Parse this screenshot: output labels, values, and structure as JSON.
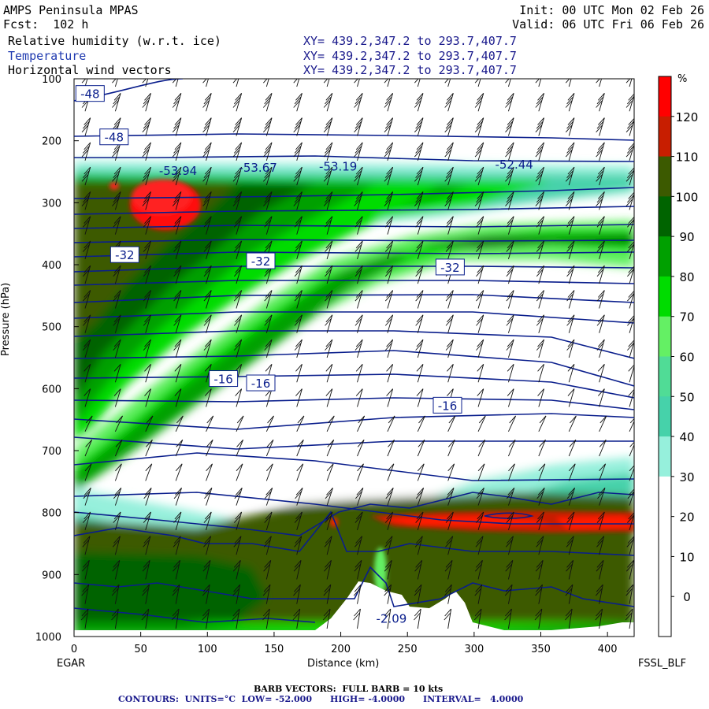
{
  "header": {
    "model": "AMPS Peninsula MPAS",
    "fcst": "Fcst:  102 h",
    "init": "Init: 00 UTC Mon 02 Feb 26",
    "valid": "Valid: 06 UTC Fri 06 Feb 26",
    "fields": [
      {
        "label": "Relative humidity (w.r.t. ice)",
        "xy": "XY= 439.2,347.2 to 293.7,407.7"
      },
      {
        "label": "Temperature",
        "xy": "XY= 439.2,347.2 to 293.7,407.7"
      },
      {
        "label": "Horizontal wind vectors",
        "xy": "XY= 439.2,347.2 to 293.7,407.7"
      }
    ]
  },
  "footer": {
    "left_station": "EGAR",
    "right_station": "FSSL_BLF",
    "barb_note": "BARB VECTORS:  FULL BARB = 10 kts",
    "contour_note": "CONTOURS:  UNITS=°C  LOW= -52.000      HIGH= -4.0000      INTERVAL=   4.0000"
  },
  "chart_data": {
    "type": "heatmap",
    "subtype": "vertical cross-section",
    "xlabel": "Distance (km)",
    "ylabel": "Pressure (hPa)",
    "xlim": [
      0,
      420
    ],
    "ylim": [
      1000,
      100
    ],
    "x_ticks": [
      0,
      50,
      100,
      150,
      200,
      250,
      300,
      350,
      400
    ],
    "y_ticks": [
      100,
      200,
      300,
      400,
      500,
      600,
      700,
      800,
      900,
      1000
    ],
    "colorbar": {
      "unit": "%",
      "labels": [
        120,
        110,
        100,
        90,
        80,
        70,
        60,
        50,
        40,
        30,
        20,
        10,
        0
      ],
      "colors": [
        "#ff0000",
        "#c81e00",
        "#3c5a00",
        "#006400",
        "#00a000",
        "#00dc00",
        "#64f064",
        "#50dc96",
        "#46d2aa",
        "#96f0dc",
        "#ffffff",
        "#ffffff",
        "#ffffff",
        "#ffffff"
      ]
    },
    "temperature_contours": {
      "unit": "°C",
      "low": -52.0,
      "high": -4.0,
      "interval": 4.0,
      "labels": [
        {
          "text": "-48",
          "x": 12,
          "p": 125
        },
        {
          "text": "-48",
          "x": 30,
          "p": 195
        },
        {
          "text": "-32",
          "x": 38,
          "p": 385
        },
        {
          "text": "-32",
          "x": 140,
          "p": 395
        },
        {
          "text": "-32",
          "x": 282,
          "p": 405
        },
        {
          "text": "-16",
          "x": 112,
          "p": 585
        },
        {
          "text": "-16",
          "x": 140,
          "p": 592
        },
        {
          "text": "-16",
          "x": 280,
          "p": 628
        }
      ],
      "extrema": [
        {
          "text": "-53.94",
          "x": 78,
          "p": 255
        },
        {
          "text": "-53.67",
          "x": 138,
          "p": 250
        },
        {
          "text": "-53.19",
          "x": 198,
          "p": 248
        },
        {
          "text": "-52.44",
          "x": 330,
          "p": 245
        },
        {
          "text": "-2.09",
          "x": 238,
          "p": 978
        }
      ]
    },
    "rh_regions": [
      {
        "name": "saturated-layer-upper",
        "p_range": [
          230,
          290
        ],
        "rh": 100
      },
      {
        "name": "supersaturated-core",
        "x_center": 68,
        "p_center": 300,
        "rh": 120
      },
      {
        "name": "moist-band",
        "p_range": [
          300,
          650
        ],
        "rh": 95
      },
      {
        "name": "dry-slot",
        "p_range": [
          400,
          720
        ],
        "rh": 20
      },
      {
        "name": "moist-boundary-layer",
        "p_range": [
          790,
          1000
        ],
        "rh": 100
      },
      {
        "name": "supersaturated-band-low",
        "x_range": [
          280,
          420
        ],
        "p_center": 815,
        "rh": 112
      }
    ]
  }
}
